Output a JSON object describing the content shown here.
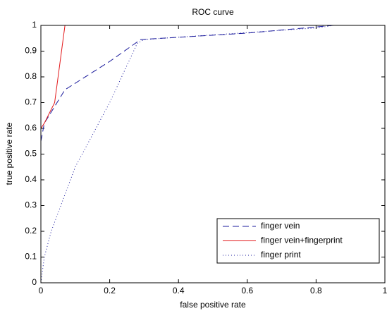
{
  "chart_data": {
    "type": "line",
    "title": "ROC curve",
    "xlabel": "false positive rate",
    "ylabel": "true positive rate",
    "xlim": [
      0,
      1
    ],
    "ylim": [
      0,
      1
    ],
    "xticks": [
      0,
      0.2,
      0.4,
      0.6,
      0.8,
      1
    ],
    "yticks": [
      0,
      0.1,
      0.2,
      0.3,
      0.4,
      0.5,
      0.6,
      0.7,
      0.8,
      0.9,
      1
    ],
    "legend": "lower right",
    "series": [
      {
        "name": "finger vein",
        "color": "#1a1a9c",
        "linestyle": "dashed",
        "x": [
          0,
          0.01,
          0.07,
          0.2,
          0.29,
          0.6,
          0.85,
          1
        ],
        "values": [
          0.55,
          0.62,
          0.75,
          0.86,
          0.945,
          0.97,
          1,
          1
        ]
      },
      {
        "name": "finger vein+fingerprint",
        "color": "#e31a1c",
        "linestyle": "solid",
        "x": [
          0,
          0.01,
          0.04,
          0.06,
          0.065,
          0.07,
          1
        ],
        "values": [
          0.6,
          0.62,
          0.7,
          0.9,
          0.95,
          1,
          1
        ]
      },
      {
        "name": "finger print",
        "color": "#1a1a9c",
        "linestyle": "dotted",
        "x": [
          0,
          0.005,
          0.01,
          0.03,
          0.1,
          0.2,
          0.28,
          0.3,
          0.8,
          0.85,
          1
        ],
        "values": [
          0,
          0.05,
          0.1,
          0.2,
          0.45,
          0.7,
          0.93,
          0.945,
          0.99,
          1,
          1
        ]
      }
    ]
  }
}
